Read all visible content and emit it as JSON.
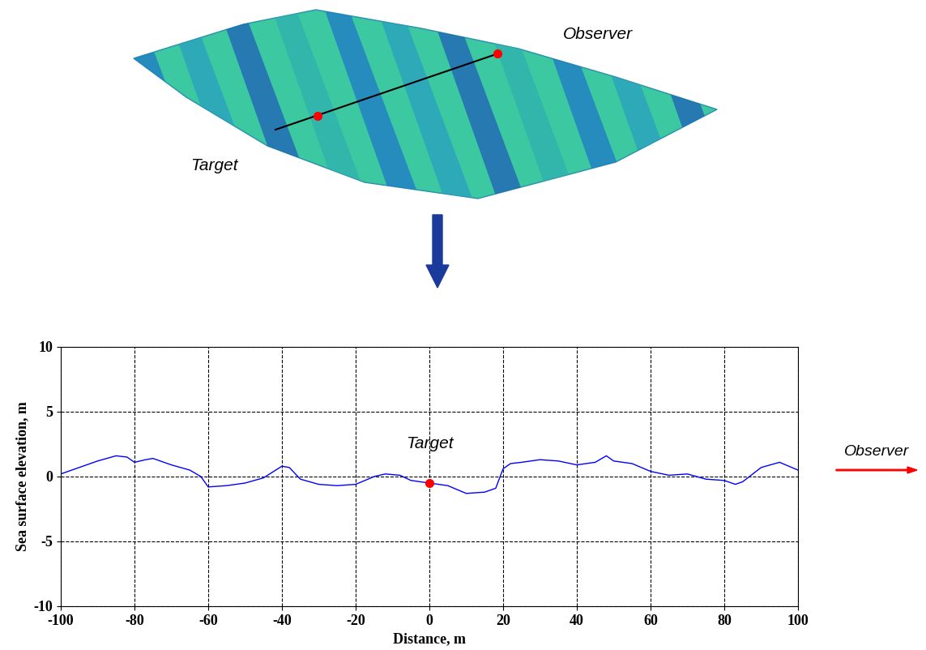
{
  "illustration": {
    "observer_label": "Observer",
    "target_label": "Target"
  },
  "chart_data": {
    "type": "line",
    "x_label": "Distance, m",
    "y_label": "Sea surface elevation, m",
    "x": [
      -100,
      -95,
      -90,
      -85,
      -82,
      -80,
      -77,
      -75,
      -70,
      -65,
      -62,
      -60,
      -55,
      -50,
      -45,
      -40,
      -38,
      -35,
      -30,
      -25,
      -20,
      -15,
      -12,
      -8,
      -5,
      0,
      5,
      10,
      15,
      18,
      20,
      22,
      25,
      30,
      35,
      40,
      45,
      48,
      50,
      55,
      60,
      65,
      70,
      75,
      80,
      83,
      85,
      90,
      95,
      100
    ],
    "values": [
      0.2,
      0.7,
      1.2,
      1.6,
      1.5,
      1.1,
      1.3,
      1.4,
      0.9,
      0.5,
      0.0,
      -0.8,
      -0.7,
      -0.5,
      -0.1,
      0.8,
      0.7,
      -0.2,
      -0.6,
      -0.7,
      -0.6,
      0.0,
      0.2,
      0.1,
      -0.3,
      -0.5,
      -0.7,
      -1.3,
      -1.2,
      -0.9,
      0.6,
      1.0,
      1.1,
      1.3,
      1.2,
      0.9,
      1.1,
      1.6,
      1.2,
      1.0,
      0.4,
      0.1,
      0.2,
      -0.2,
      -0.3,
      -0.6,
      -0.4,
      0.7,
      1.1,
      0.5
    ],
    "color": "#0000ff",
    "xlim": [
      -100,
      100
    ],
    "xticks": [
      -100,
      -80,
      -60,
      -40,
      -20,
      0,
      20,
      40,
      60,
      80,
      100
    ],
    "ylim": [
      -10,
      10
    ],
    "yticks": [
      -10,
      -5,
      0,
      5,
      10
    ],
    "grid": true,
    "annotations": [
      {
        "text": "Target",
        "x": 0,
        "y": -0.5,
        "color": "#ff0000"
      },
      {
        "text": "Observer",
        "color": "#ff0000"
      }
    ]
  }
}
